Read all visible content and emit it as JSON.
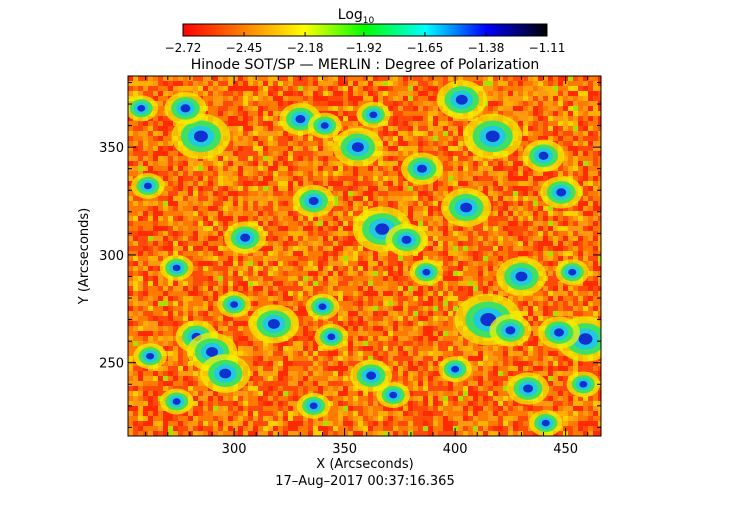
{
  "chart_data": {
    "type": "heatmap",
    "title": "Hinode SOT/SP — MERLIN : Degree of Polarization",
    "xlabel": "X (Arcseconds)",
    "ylabel": "Y (Arcseconds)",
    "timestamp": "17–Aug–2017 00:37:16.365",
    "xlim": [
      252,
      466
    ],
    "ylim": [
      216,
      383
    ],
    "xticks": [
      300,
      350,
      400,
      450
    ],
    "yticks": [
      250,
      300,
      350
    ],
    "xtick_labels": [
      "300",
      "350",
      "400",
      "450"
    ],
    "ytick_labels": [
      "250",
      "300",
      "350"
    ],
    "colorbar": {
      "label_base": "Log",
      "label_sub": "10",
      "min": -2.72,
      "max": -1.11,
      "ticks": [
        -2.72,
        -2.45,
        -2.18,
        -1.92,
        -1.65,
        -1.38,
        -1.11
      ],
      "tick_labels": [
        "−2.72",
        "−2.45",
        "−2.18",
        "−1.92",
        "−1.65",
        "−1.38",
        "−1.11"
      ],
      "colormap": [
        "#ff0000",
        "#ff8000",
        "#ffff00",
        "#00ff00",
        "#00ffff",
        "#0000ff",
        "#000000"
      ]
    },
    "features": [
      {
        "x": 285,
        "y": 355,
        "r": 7
      },
      {
        "x": 278,
        "y": 368,
        "r": 5
      },
      {
        "x": 330,
        "y": 363,
        "r": 5
      },
      {
        "x": 341,
        "y": 360,
        "r": 4
      },
      {
        "x": 356,
        "y": 350,
        "r": 6
      },
      {
        "x": 363,
        "y": 365,
        "r": 4
      },
      {
        "x": 385,
        "y": 340,
        "r": 5
      },
      {
        "x": 403,
        "y": 372,
        "r": 6
      },
      {
        "x": 417,
        "y": 355,
        "r": 7
      },
      {
        "x": 440,
        "y": 346,
        "r": 5
      },
      {
        "x": 261,
        "y": 332,
        "r": 4
      },
      {
        "x": 305,
        "y": 308,
        "r": 5
      },
      {
        "x": 336,
        "y": 325,
        "r": 5
      },
      {
        "x": 367,
        "y": 312,
        "r": 7
      },
      {
        "x": 378,
        "y": 307,
        "r": 5
      },
      {
        "x": 405,
        "y": 322,
        "r": 6
      },
      {
        "x": 448,
        "y": 329,
        "r": 5
      },
      {
        "x": 274,
        "y": 294,
        "r": 4
      },
      {
        "x": 387,
        "y": 292,
        "r": 4
      },
      {
        "x": 430,
        "y": 290,
        "r": 6
      },
      {
        "x": 453,
        "y": 292,
        "r": 4
      },
      {
        "x": 340,
        "y": 276,
        "r": 4
      },
      {
        "x": 283,
        "y": 262,
        "r": 5
      },
      {
        "x": 300,
        "y": 277,
        "r": 4
      },
      {
        "x": 318,
        "y": 268,
        "r": 6
      },
      {
        "x": 344,
        "y": 262,
        "r": 4
      },
      {
        "x": 415,
        "y": 270,
        "r": 8
      },
      {
        "x": 425,
        "y": 265,
        "r": 5
      },
      {
        "x": 459,
        "y": 261,
        "r": 7
      },
      {
        "x": 447,
        "y": 264,
        "r": 5
      },
      {
        "x": 290,
        "y": 255,
        "r": 6
      },
      {
        "x": 296,
        "y": 245,
        "r": 6
      },
      {
        "x": 262,
        "y": 253,
        "r": 4
      },
      {
        "x": 362,
        "y": 244,
        "r": 5
      },
      {
        "x": 372,
        "y": 235,
        "r": 4
      },
      {
        "x": 400,
        "y": 247,
        "r": 4
      },
      {
        "x": 433,
        "y": 238,
        "r": 5
      },
      {
        "x": 441,
        "y": 222,
        "r": 4
      },
      {
        "x": 274,
        "y": 232,
        "r": 4
      },
      {
        "x": 336,
        "y": 230,
        "r": 4
      },
      {
        "x": 458,
        "y": 240,
        "r": 4
      },
      {
        "x": 258,
        "y": 368,
        "r": 4
      }
    ]
  }
}
